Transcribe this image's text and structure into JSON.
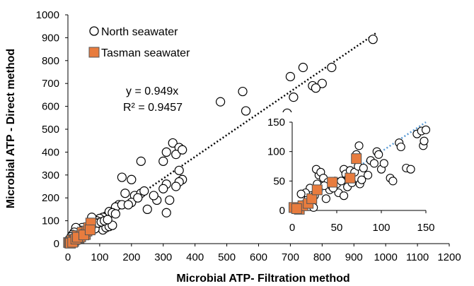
{
  "chart_data": {
    "type": "scatter",
    "xlabel": "Microbial ATP- Filtration method",
    "ylabel": "Microbial ATP - Direct method",
    "xlim": [
      0,
      1200
    ],
    "ylim": [
      0,
      1000
    ],
    "x_ticks": [
      "0",
      "100",
      "200",
      "300",
      "400",
      "500",
      "600",
      "700",
      "800",
      "900",
      "1000",
      "1100",
      "1200"
    ],
    "y_ticks": [
      "0",
      "100",
      "200",
      "300",
      "400",
      "500",
      "600",
      "700",
      "800",
      "900",
      "1000"
    ],
    "legend_position": "top-left",
    "annotation": {
      "equation": "y = 0.949x",
      "r2": "R² = 0.9457"
    },
    "series": [
      {
        "name": "North seawater",
        "marker": "open-circle",
        "color": "#000000",
        "points": [
          [
            960,
            893
          ],
          [
            830,
            770
          ],
          [
            700,
            730
          ],
          [
            740,
            770
          ],
          [
            800,
            700
          ],
          [
            770,
            690
          ],
          [
            710,
            640
          ],
          [
            780,
            680
          ],
          [
            690,
            570
          ],
          [
            550,
            665
          ],
          [
            560,
            580
          ],
          [
            480,
            620
          ],
          [
            330,
            440
          ],
          [
            350,
            420
          ],
          [
            340,
            390
          ],
          [
            360,
            410
          ],
          [
            300,
            360
          ],
          [
            310,
            400
          ],
          [
            350,
            320
          ],
          [
            360,
            280
          ],
          [
            230,
            360
          ],
          [
            200,
            280
          ],
          [
            170,
            290
          ],
          [
            180,
            220
          ],
          [
            210,
            210
          ],
          [
            230,
            220
          ],
          [
            310,
            260
          ],
          [
            300,
            240
          ],
          [
            320,
            190
          ],
          [
            350,
            270
          ],
          [
            340,
            250
          ],
          [
            280,
            190
          ],
          [
            270,
            210
          ],
          [
            250,
            150
          ],
          [
            310,
            135
          ],
          [
            160,
            170
          ],
          [
            150,
            160
          ],
          [
            170,
            170
          ],
          [
            120,
            120
          ],
          [
            130,
            140
          ],
          [
            140,
            135
          ],
          [
            110,
            115
          ],
          [
            100,
            110
          ],
          [
            90,
            100
          ],
          [
            80,
            95
          ],
          [
            200,
            180
          ],
          [
            190,
            170
          ],
          [
            220,
            200
          ],
          [
            240,
            230
          ],
          [
            150,
            130
          ],
          [
            90,
            70
          ],
          [
            100,
            80
          ],
          [
            110,
            60
          ],
          [
            120,
            70
          ],
          [
            130,
            75
          ],
          [
            140,
            80
          ],
          [
            60,
            50
          ],
          [
            70,
            60
          ],
          [
            75,
            115
          ],
          [
            80,
            85
          ],
          [
            50,
            40
          ],
          [
            40,
            35
          ],
          [
            45,
            70
          ],
          [
            35,
            60
          ],
          [
            30,
            55
          ],
          [
            25,
            70
          ],
          [
            20,
            50
          ],
          [
            15,
            40
          ],
          [
            10,
            30
          ],
          [
            5,
            20
          ],
          [
            8,
            10
          ],
          [
            55,
            45
          ],
          [
            65,
            55
          ],
          [
            85,
            65
          ],
          [
            95,
            90
          ],
          [
            105,
            95
          ],
          [
            115,
            100
          ],
          [
            125,
            105
          ]
        ]
      },
      {
        "name": "Tasman seawater",
        "marker": "filled-square",
        "color": "#e87c3e",
        "points": [
          [
            2,
            5
          ],
          [
            5,
            3
          ],
          [
            10,
            8
          ],
          [
            12,
            15
          ],
          [
            18,
            10
          ],
          [
            22,
            18
          ],
          [
            28,
            35
          ],
          [
            35,
            25
          ],
          [
            40,
            30
          ],
          [
            45,
            50
          ],
          [
            55,
            40
          ],
          [
            60,
            55
          ],
          [
            65,
            70
          ],
          [
            72,
            90
          ],
          [
            8,
            2
          ],
          [
            15,
            6
          ],
          [
            25,
            20
          ],
          [
            30,
            28
          ],
          [
            50,
            38
          ],
          [
            70,
            60
          ]
        ]
      }
    ],
    "trendline": {
      "slope": 0.949,
      "style": "dotted",
      "color": "#000000",
      "x_range": [
        0,
        970
      ]
    },
    "inset": {
      "type": "scatter",
      "xlim": [
        0,
        150
      ],
      "ylim": [
        0,
        150
      ],
      "x_ticks": [
        "0",
        "50",
        "100",
        "150"
      ],
      "y_ticks": [
        "0",
        "50",
        "100",
        "150"
      ],
      "trendline": {
        "slope": 1.0,
        "style": "dotted",
        "color": "#5b9bd5",
        "x_range": [
          0,
          150
        ]
      },
      "north_points": [
        [
          5,
          5
        ],
        [
          12,
          10
        ],
        [
          18,
          20
        ],
        [
          20,
          38
        ],
        [
          15,
          30
        ],
        [
          22,
          14
        ],
        [
          25,
          25
        ],
        [
          28,
          45
        ],
        [
          30,
          60
        ],
        [
          27,
          70
        ],
        [
          32,
          65
        ],
        [
          35,
          55
        ],
        [
          38,
          20
        ],
        [
          40,
          48
        ],
        [
          42,
          35
        ],
        [
          45,
          40
        ],
        [
          48,
          50
        ],
        [
          50,
          45
        ],
        [
          52,
          30
        ],
        [
          55,
          50
        ],
        [
          58,
          70
        ],
        [
          60,
          62
        ],
        [
          62,
          40
        ],
        [
          63,
          55
        ],
        [
          65,
          68
        ],
        [
          67,
          47
        ],
        [
          70,
          65
        ],
        [
          72,
          95
        ],
        [
          74,
          75
        ],
        [
          75,
          110
        ],
        [
          76,
          45
        ],
        [
          78,
          52
        ],
        [
          80,
          72
        ],
        [
          85,
          60
        ],
        [
          88,
          85
        ],
        [
          92,
          80
        ],
        [
          95,
          100
        ],
        [
          97,
          95
        ],
        [
          100,
          70
        ],
        [
          103,
          80
        ],
        [
          110,
          55
        ],
        [
          113,
          50
        ],
        [
          120,
          115
        ],
        [
          122,
          108
        ],
        [
          128,
          72
        ],
        [
          133,
          70
        ],
        [
          140,
          130
        ],
        [
          145,
          135
        ],
        [
          147,
          110
        ],
        [
          148,
          118
        ],
        [
          150,
          137
        ],
        [
          46,
          38
        ],
        [
          36,
          42
        ],
        [
          58,
          25
        ],
        [
          24,
          5
        ],
        [
          10,
          28
        ]
      ],
      "tasman_points": [
        [
          2,
          5
        ],
        [
          8,
          2
        ],
        [
          12,
          8
        ],
        [
          18,
          12
        ],
        [
          22,
          20
        ],
        [
          28,
          35
        ],
        [
          45,
          48
        ],
        [
          65,
          55
        ],
        [
          72,
          88
        ],
        [
          5,
          3
        ]
      ]
    }
  }
}
